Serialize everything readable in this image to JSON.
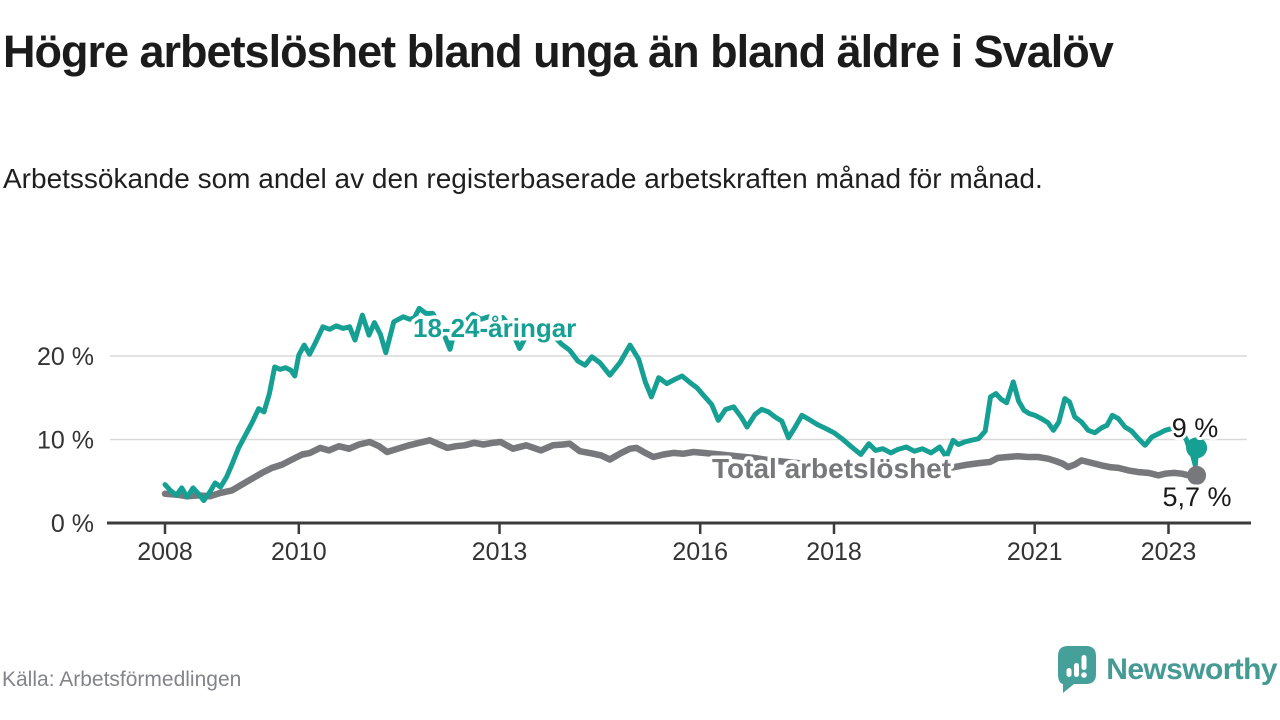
{
  "header": {
    "title": "Högre arbetslöshet bland unga än bland äldre i Svalöv",
    "subtitle": "Arbetssökande som andel av den registerbaserade arbetskraften månad för månad."
  },
  "footer": {
    "source": "Källa: Arbetsförmedlingen",
    "brand": "Newsworthy"
  },
  "colors": {
    "young_line": "#16a093",
    "total_line": "#77787b",
    "axis": "#3b3b3b",
    "grid": "#d9d9d9",
    "tick_text": "#333333",
    "value_text": "#191919",
    "muted_text": "#83848a",
    "brand_teal": "#459a94"
  },
  "chart_data": {
    "type": "line",
    "title": "Högre arbetslöshet bland unga än bland äldre i Svalöv",
    "subtitle": "Arbetssökande som andel av den registerbaserade arbetskraften månad för månad.",
    "legend_position": "inline-labels",
    "grid": "horizontal",
    "x_axis": {
      "tick_years": [
        2008,
        2010,
        2013,
        2016,
        2018,
        2021,
        2023
      ],
      "tick_labels": [
        "2008",
        "2010",
        "2013",
        "2016",
        "2018",
        "2021",
        "2023"
      ],
      "range": [
        2007.9,
        2023.75
      ]
    },
    "y_axis": {
      "ticks": [
        0,
        10,
        20
      ],
      "tick_labels": [
        "0 %",
        "10 %",
        "20 %"
      ],
      "unit": "%",
      "range": [
        0,
        26
      ]
    },
    "series": [
      {
        "name": "Total arbetslöshet",
        "color": "#77787b",
        "end_label": "5,7 %",
        "end_value": 5.7,
        "points": [
          [
            2008.0,
            3.5
          ],
          [
            2008.17,
            3.4
          ],
          [
            2008.33,
            3.2
          ],
          [
            2008.5,
            3.3
          ],
          [
            2008.67,
            3.2
          ],
          [
            2008.83,
            3.6
          ],
          [
            2009.0,
            3.9
          ],
          [
            2009.15,
            4.6
          ],
          [
            2009.3,
            5.3
          ],
          [
            2009.45,
            6.0
          ],
          [
            2009.6,
            6.6
          ],
          [
            2009.75,
            7.0
          ],
          [
            2009.9,
            7.6
          ],
          [
            2010.05,
            8.2
          ],
          [
            2010.17,
            8.4
          ],
          [
            2010.32,
            9.0
          ],
          [
            2010.45,
            8.7
          ],
          [
            2010.6,
            9.2
          ],
          [
            2010.75,
            8.9
          ],
          [
            2010.9,
            9.4
          ],
          [
            2011.06,
            9.7
          ],
          [
            2011.2,
            9.2
          ],
          [
            2011.32,
            8.5
          ],
          [
            2011.48,
            8.9
          ],
          [
            2011.65,
            9.3
          ],
          [
            2011.8,
            9.6
          ],
          [
            2011.96,
            9.9
          ],
          [
            2012.1,
            9.4
          ],
          [
            2012.22,
            9.0
          ],
          [
            2012.35,
            9.2
          ],
          [
            2012.48,
            9.3
          ],
          [
            2012.62,
            9.6
          ],
          [
            2012.76,
            9.4
          ],
          [
            2012.9,
            9.6
          ],
          [
            2013.02,
            9.7
          ],
          [
            2013.2,
            8.9
          ],
          [
            2013.4,
            9.3
          ],
          [
            2013.62,
            8.7
          ],
          [
            2013.8,
            9.3
          ],
          [
            2013.95,
            9.4
          ],
          [
            2014.05,
            9.5
          ],
          [
            2014.2,
            8.6
          ],
          [
            2014.4,
            8.3
          ],
          [
            2014.52,
            8.1
          ],
          [
            2014.65,
            7.6
          ],
          [
            2014.82,
            8.4
          ],
          [
            2014.95,
            8.9
          ],
          [
            2015.05,
            9.0
          ],
          [
            2015.18,
            8.4
          ],
          [
            2015.3,
            7.9
          ],
          [
            2015.45,
            8.2
          ],
          [
            2015.6,
            8.4
          ],
          [
            2015.75,
            8.3
          ],
          [
            2015.9,
            8.5
          ],
          [
            2016.05,
            8.4
          ],
          [
            2016.3,
            8.2
          ],
          [
            2016.55,
            8.0
          ],
          [
            2016.8,
            7.8
          ],
          [
            2017.05,
            7.5
          ],
          [
            2017.3,
            7.3
          ],
          [
            2017.55,
            7.1
          ],
          [
            2017.8,
            6.9
          ],
          [
            2018.05,
            6.7
          ],
          [
            2018.3,
            6.5
          ],
          [
            2018.55,
            6.3
          ],
          [
            2018.8,
            6.2
          ],
          [
            2019.05,
            6.2
          ],
          [
            2019.3,
            6.3
          ],
          [
            2019.55,
            6.5
          ],
          [
            2019.8,
            6.7
          ],
          [
            2020.0,
            7.0
          ],
          [
            2020.2,
            7.2
          ],
          [
            2020.33,
            7.3
          ],
          [
            2020.45,
            7.8
          ],
          [
            2020.6,
            7.9
          ],
          [
            2020.75,
            8.0
          ],
          [
            2020.9,
            7.9
          ],
          [
            2021.05,
            7.9
          ],
          [
            2021.2,
            7.7
          ],
          [
            2021.32,
            7.4
          ],
          [
            2021.42,
            7.1
          ],
          [
            2021.5,
            6.7
          ],
          [
            2021.6,
            7.0
          ],
          [
            2021.7,
            7.5
          ],
          [
            2021.85,
            7.2
          ],
          [
            2022.0,
            6.9
          ],
          [
            2022.12,
            6.7
          ],
          [
            2022.25,
            6.6
          ],
          [
            2022.4,
            6.3
          ],
          [
            2022.55,
            6.1
          ],
          [
            2022.7,
            6.0
          ],
          [
            2022.85,
            5.7
          ],
          [
            2022.95,
            5.9
          ],
          [
            2023.08,
            6.0
          ],
          [
            2023.2,
            5.9
          ],
          [
            2023.3,
            5.7
          ],
          [
            2023.36,
            5.6
          ],
          [
            2023.42,
            5.7
          ]
        ]
      },
      {
        "name": "18-24-åringar",
        "color": "#16a093",
        "end_label": "9 %",
        "end_value": 9,
        "points": [
          [
            2008.0,
            4.6
          ],
          [
            2008.08,
            3.9
          ],
          [
            2008.17,
            3.3
          ],
          [
            2008.25,
            4.2
          ],
          [
            2008.33,
            3.1
          ],
          [
            2008.42,
            4.2
          ],
          [
            2008.5,
            3.5
          ],
          [
            2008.58,
            2.7
          ],
          [
            2008.67,
            3.7
          ],
          [
            2008.75,
            4.8
          ],
          [
            2008.83,
            4.3
          ],
          [
            2008.92,
            5.5
          ],
          [
            2009.0,
            7.0
          ],
          [
            2009.1,
            9.0
          ],
          [
            2009.2,
            10.5
          ],
          [
            2009.3,
            12.0
          ],
          [
            2009.4,
            13.7
          ],
          [
            2009.48,
            13.3
          ],
          [
            2009.56,
            15.5
          ],
          [
            2009.64,
            18.7
          ],
          [
            2009.72,
            18.4
          ],
          [
            2009.8,
            18.6
          ],
          [
            2009.88,
            18.3
          ],
          [
            2009.94,
            17.6
          ],
          [
            2010.0,
            20.1
          ],
          [
            2010.08,
            21.3
          ],
          [
            2010.16,
            20.2
          ],
          [
            2010.25,
            21.6
          ],
          [
            2010.36,
            23.5
          ],
          [
            2010.46,
            23.2
          ],
          [
            2010.56,
            23.6
          ],
          [
            2010.66,
            23.3
          ],
          [
            2010.76,
            23.5
          ],
          [
            2010.84,
            21.9
          ],
          [
            2010.95,
            24.9
          ],
          [
            2011.05,
            22.5
          ],
          [
            2011.13,
            24.0
          ],
          [
            2011.22,
            22.6
          ],
          [
            2011.3,
            20.4
          ],
          [
            2011.42,
            24.1
          ],
          [
            2011.56,
            24.7
          ],
          [
            2011.66,
            24.4
          ],
          [
            2011.73,
            24.6
          ],
          [
            2011.8,
            25.7
          ],
          [
            2011.9,
            25.1
          ],
          [
            2012.0,
            25.1
          ],
          [
            2012.12,
            23.6
          ],
          [
            2012.26,
            20.8
          ],
          [
            2012.38,
            24.6
          ],
          [
            2012.5,
            24.2
          ],
          [
            2012.6,
            25.0
          ],
          [
            2012.72,
            24.4
          ],
          [
            2012.84,
            24.7
          ],
          [
            2012.95,
            24.2
          ],
          [
            2013.05,
            24.6
          ],
          [
            2013.15,
            23.6
          ],
          [
            2013.3,
            20.9
          ],
          [
            2013.45,
            23.2
          ],
          [
            2013.58,
            23.6
          ],
          [
            2013.7,
            23.1
          ],
          [
            2013.82,
            22.3
          ],
          [
            2013.93,
            21.4
          ],
          [
            2014.05,
            20.7
          ],
          [
            2014.17,
            19.4
          ],
          [
            2014.28,
            18.9
          ],
          [
            2014.38,
            19.9
          ],
          [
            2014.5,
            19.2
          ],
          [
            2014.65,
            17.7
          ],
          [
            2014.8,
            19.2
          ],
          [
            2014.95,
            21.3
          ],
          [
            2015.08,
            19.6
          ],
          [
            2015.18,
            16.9
          ],
          [
            2015.27,
            15.1
          ],
          [
            2015.38,
            17.4
          ],
          [
            2015.5,
            16.7
          ],
          [
            2015.62,
            17.2
          ],
          [
            2015.73,
            17.6
          ],
          [
            2015.85,
            16.8
          ],
          [
            2015.95,
            16.2
          ],
          [
            2016.07,
            15.1
          ],
          [
            2016.17,
            14.2
          ],
          [
            2016.27,
            12.3
          ],
          [
            2016.38,
            13.6
          ],
          [
            2016.5,
            13.9
          ],
          [
            2016.62,
            12.6
          ],
          [
            2016.7,
            11.5
          ],
          [
            2016.82,
            13.0
          ],
          [
            2016.92,
            13.6
          ],
          [
            2017.02,
            13.3
          ],
          [
            2017.12,
            12.7
          ],
          [
            2017.22,
            12.2
          ],
          [
            2017.32,
            10.2
          ],
          [
            2017.42,
            11.5
          ],
          [
            2017.52,
            12.9
          ],
          [
            2017.63,
            12.4
          ],
          [
            2017.75,
            11.8
          ],
          [
            2017.88,
            11.3
          ],
          [
            2018.0,
            10.8
          ],
          [
            2018.12,
            10.1
          ],
          [
            2018.25,
            9.2
          ],
          [
            2018.4,
            8.2
          ],
          [
            2018.52,
            9.5
          ],
          [
            2018.62,
            8.7
          ],
          [
            2018.73,
            8.9
          ],
          [
            2018.85,
            8.4
          ],
          [
            2018.95,
            8.8
          ],
          [
            2019.08,
            9.1
          ],
          [
            2019.2,
            8.6
          ],
          [
            2019.32,
            8.9
          ],
          [
            2019.45,
            8.4
          ],
          [
            2019.58,
            9.1
          ],
          [
            2019.68,
            7.9
          ],
          [
            2019.78,
            9.9
          ],
          [
            2019.86,
            9.4
          ],
          [
            2019.95,
            9.7
          ],
          [
            2020.05,
            9.9
          ],
          [
            2020.16,
            10.1
          ],
          [
            2020.26,
            11.0
          ],
          [
            2020.34,
            15.1
          ],
          [
            2020.42,
            15.5
          ],
          [
            2020.5,
            14.8
          ],
          [
            2020.58,
            14.4
          ],
          [
            2020.68,
            16.9
          ],
          [
            2020.76,
            14.6
          ],
          [
            2020.84,
            13.5
          ],
          [
            2020.92,
            13.1
          ],
          [
            2021.0,
            12.9
          ],
          [
            2021.1,
            12.5
          ],
          [
            2021.2,
            12.0
          ],
          [
            2021.28,
            11.1
          ],
          [
            2021.36,
            12.1
          ],
          [
            2021.45,
            14.9
          ],
          [
            2021.52,
            14.5
          ],
          [
            2021.6,
            12.7
          ],
          [
            2021.7,
            12.1
          ],
          [
            2021.8,
            11.1
          ],
          [
            2021.9,
            10.8
          ],
          [
            2022.0,
            11.4
          ],
          [
            2022.08,
            11.7
          ],
          [
            2022.16,
            12.9
          ],
          [
            2022.25,
            12.5
          ],
          [
            2022.35,
            11.5
          ],
          [
            2022.45,
            11.0
          ],
          [
            2022.55,
            10.1
          ],
          [
            2022.65,
            9.3
          ],
          [
            2022.75,
            10.3
          ],
          [
            2022.85,
            10.7
          ],
          [
            2022.95,
            11.1
          ],
          [
            2023.05,
            11.3
          ],
          [
            2023.12,
            11.5
          ],
          [
            2023.2,
            11.0
          ],
          [
            2023.27,
            9.9
          ],
          [
            2023.32,
            8.7
          ],
          [
            2023.36,
            8.1
          ],
          [
            2023.4,
            6.9
          ],
          [
            2023.42,
            9.0
          ]
        ]
      }
    ]
  }
}
